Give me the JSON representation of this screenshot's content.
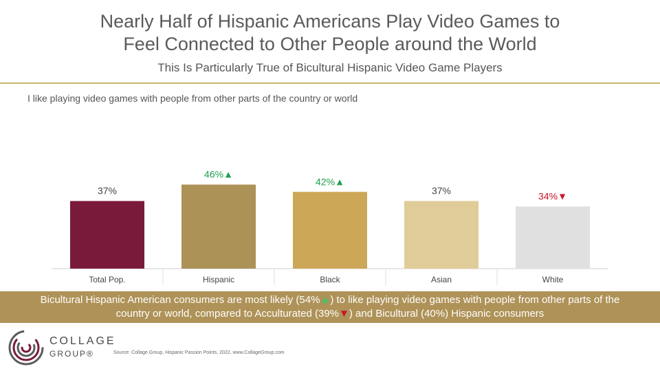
{
  "title_line1": "Nearly Half of Hispanic Americans Play Video Games to",
  "title_line2": "Feel Connected to Other People around the World",
  "subtitle": "This Is Particularly True of Bicultural Hispanic Video Game Players",
  "question": "I like playing video games with people from other parts of the country or world",
  "chart_data": {
    "type": "bar",
    "categories": [
      "Total Pop.",
      "Hispanic",
      "Black",
      "Asian",
      "White"
    ],
    "values": [
      37,
      46,
      42,
      37,
      34
    ],
    "data_labels": [
      "37%",
      "46%",
      "42%",
      "37%",
      "34%"
    ],
    "significance": [
      "none",
      "up",
      "up",
      "none",
      "down"
    ],
    "colors": [
      "#7a1a3a",
      "#ad9257",
      "#cba757",
      "#e0cc98",
      "#e0e0e0"
    ],
    "ylim": [
      0,
      50
    ],
    "grid": false,
    "legend": "none",
    "xlabel": "",
    "ylabel": ""
  },
  "callout": {
    "part1": "Bicultural Hispanic American consumers are most likely (54%",
    "part2": ") to like playing video games with people from other parts of the",
    "part3": "country or world, compared to Acculturated (39%",
    "part4": ") and Bicultural (40%) Hispanic consumers"
  },
  "logo": {
    "line1": "COLLAGE",
    "line2": "GROUP®"
  },
  "source": "Source: Collage Group, Hispanic Passion Points, 2022, www.CollageGroup.com",
  "colors": {
    "accent_rule": "#c9b56a",
    "callout_bg": "#ad9257",
    "up": "#3ec46d",
    "down": "#c9152a"
  }
}
